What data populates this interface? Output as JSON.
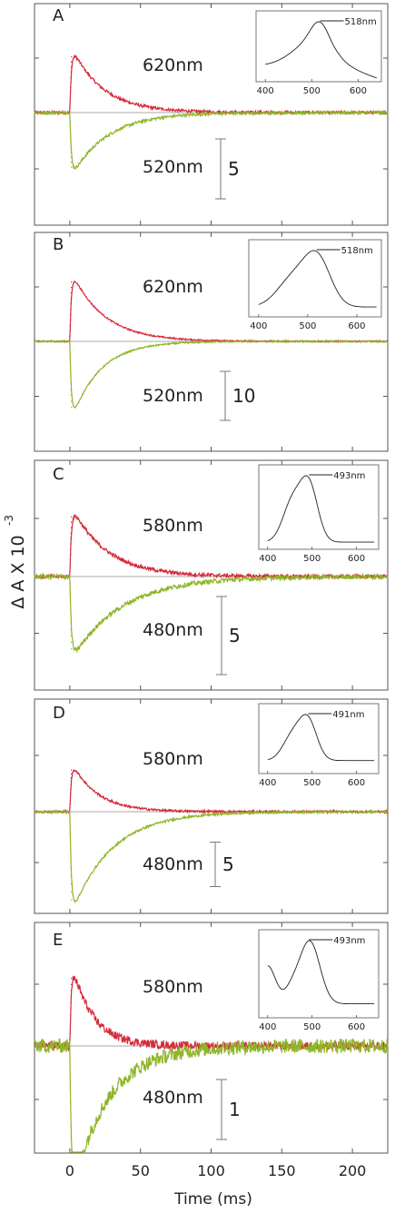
{
  "figure": {
    "ylabel_main": "Δ A X 10",
    "ylabel_exp": "-3",
    "xlabel": "Time (ms)",
    "x_ticks": [
      "0",
      "50",
      "100",
      "150",
      "200"
    ],
    "x_tick_values": [
      0,
      50,
      100,
      150,
      200
    ],
    "xlim": [
      -25,
      225
    ],
    "colors": {
      "upper": "#d42a3a",
      "lower": "#8fb529",
      "baseline": "#aaaaaa",
      "frame": "#555555"
    }
  },
  "chart_data": [
    {
      "type": "line",
      "panel": "A",
      "series": [
        {
          "name": "620nm",
          "peak": 5.8,
          "tau": 22,
          "noise": 0.12
        },
        {
          "name": "520nm",
          "peak": -5.6,
          "tau": 25,
          "noise": 0.12
        }
      ],
      "scale_bar_label": "5",
      "scale_bar_value": 5,
      "inset": {
        "peak_label": "518nm",
        "x_ticks": [
          "400",
          "500",
          "600"
        ],
        "xlim": [
          380,
          650
        ],
        "peak": 518,
        "type": "A"
      }
    },
    {
      "type": "line",
      "panel": "B",
      "series": [
        {
          "name": "620nm",
          "peak": 15,
          "tau": 23,
          "noise": 0.15
        },
        {
          "name": "520nm",
          "peak": -17,
          "tau": 20,
          "noise": 0.15
        }
      ],
      "scale_bar_label": "10",
      "scale_bar_value": 10,
      "inset": {
        "peak_label": "518nm",
        "x_ticks": [
          "400",
          "500",
          "600"
        ],
        "xlim": [
          380,
          650
        ],
        "peak": 518,
        "type": "B"
      }
    },
    {
      "type": "line",
      "panel": "C",
      "series": [
        {
          "name": "580nm",
          "peak": 4.7,
          "tau": 25,
          "noise": 0.12
        },
        {
          "name": "480nm",
          "peak": -5.5,
          "tau": 35,
          "noise": 0.15
        }
      ],
      "scale_bar_label": "5",
      "scale_bar_value": 5,
      "inset": {
        "peak_label": "493nm",
        "x_ticks": [
          "400",
          "500",
          "600"
        ],
        "xlim": [
          380,
          650
        ],
        "peak": 493,
        "type": "C"
      }
    },
    {
      "type": "line",
      "panel": "D",
      "series": [
        {
          "name": "580nm",
          "peak": 6,
          "tau": 18,
          "noise": 0.12
        },
        {
          "name": "480nm",
          "peak": -12,
          "tau": 28,
          "noise": 0.12
        }
      ],
      "scale_bar_label": "5",
      "scale_bar_value": 5,
      "inset": {
        "peak_label": "491nm",
        "x_ticks": [
          "400",
          "500",
          "600"
        ],
        "xlim": [
          380,
          650
        ],
        "peak": 491,
        "type": "D"
      }
    },
    {
      "type": "line",
      "panel": "E",
      "series": [
        {
          "name": "580nm",
          "peak": 1.5,
          "tau": 15,
          "noise": 0.07
        },
        {
          "name": "480nm",
          "peak": -2.6,
          "tau": 25,
          "noise": 0.12
        }
      ],
      "scale_bar_label": "1",
      "scale_bar_value": 1,
      "inset": {
        "peak_label": "493nm",
        "x_ticks": [
          "400",
          "500",
          "600"
        ],
        "xlim": [
          380,
          650
        ],
        "peak": 493,
        "type": "E"
      }
    }
  ]
}
